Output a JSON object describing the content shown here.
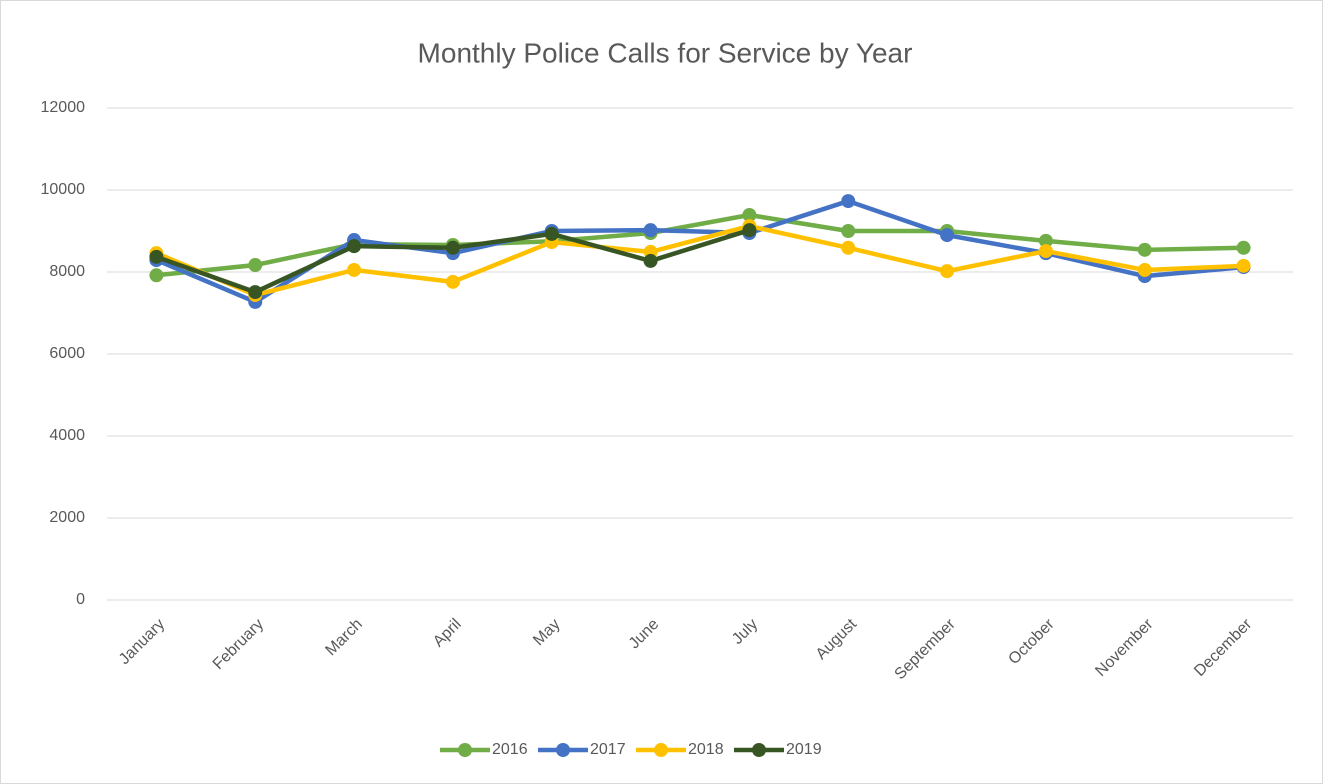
{
  "chart_data": {
    "type": "line",
    "title": "Monthly Police Calls for Service by Year",
    "categories": [
      "January",
      "February",
      "March",
      "April",
      "May",
      "June",
      "July",
      "August",
      "September",
      "October",
      "November",
      "December"
    ],
    "series": [
      {
        "name": "2016",
        "color": "#70ad47",
        "values": [
          7920,
          8170,
          8680,
          8660,
          8750,
          8950,
          9390,
          9000,
          9000,
          8760,
          8540,
          8590
        ]
      },
      {
        "name": "2017",
        "color": "#4472c4",
        "values": [
          8290,
          7270,
          8780,
          8460,
          9000,
          9020,
          8950,
          9730,
          8900,
          8460,
          7900,
          8120
        ]
      },
      {
        "name": "2018",
        "color": "#ffc000",
        "values": [
          8460,
          7440,
          8050,
          7760,
          8730,
          8490,
          9120,
          8590,
          8020,
          8510,
          8050,
          8150
        ]
      },
      {
        "name": "2019",
        "color": "#375623",
        "values": [
          8370,
          7510,
          8630,
          8590,
          8930,
          8270,
          9020,
          null,
          null,
          null,
          null,
          null
        ]
      }
    ],
    "ylim": [
      0,
      12000
    ],
    "yticks": [
      0,
      2000,
      4000,
      6000,
      8000,
      10000,
      12000
    ],
    "grid": true,
    "legend": "bottom"
  }
}
